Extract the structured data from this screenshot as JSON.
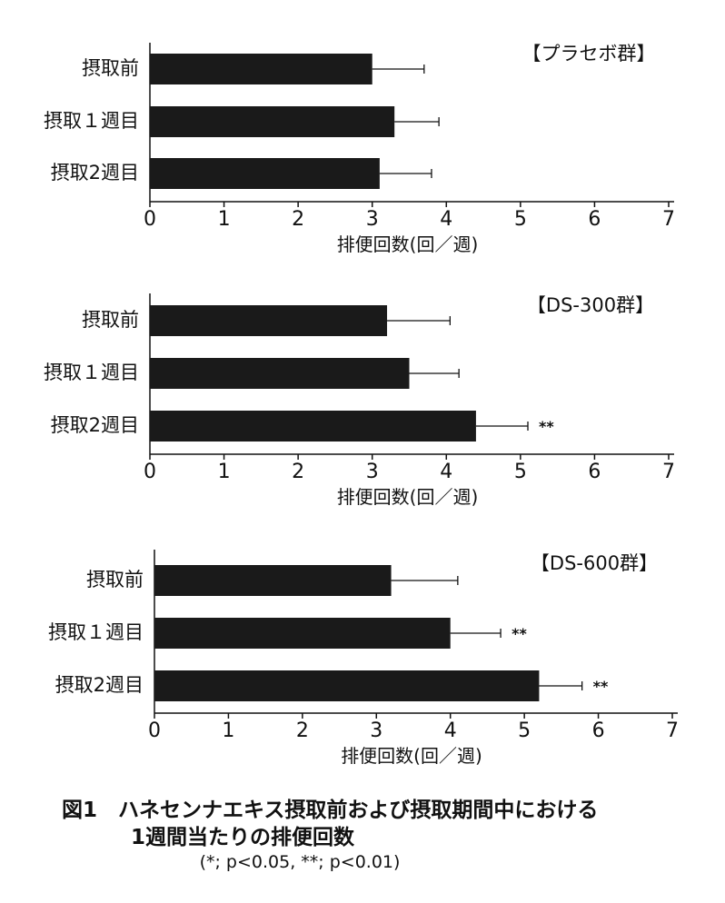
{
  "chart_data": [
    {
      "type": "bar",
      "orientation": "horizontal",
      "title": "【プラセボ群】",
      "categories": [
        "摂取前",
        "摂取１週目",
        "摂取2週目"
      ],
      "values": [
        3.0,
        3.3,
        3.1
      ],
      "error": [
        0.7,
        0.6,
        0.7
      ],
      "significance": [
        "",
        "",
        ""
      ],
      "xlabel": "排便回数(回／週)",
      "xlim": [
        0,
        7
      ],
      "xticks": [
        "0",
        "1",
        "2",
        "3",
        "4",
        "5",
        "6",
        "7"
      ],
      "grid": false
    },
    {
      "type": "bar",
      "orientation": "horizontal",
      "title": "【DS-300群】",
      "categories": [
        "摂取前",
        "摂取１週目",
        "摂取2週目"
      ],
      "values": [
        3.2,
        3.5,
        4.4
      ],
      "error": [
        0.85,
        0.67,
        0.7
      ],
      "significance": [
        "",
        "",
        "**"
      ],
      "xlabel": "排便回数(回／週)",
      "xlim": [
        0,
        7
      ],
      "xticks": [
        "0",
        "1",
        "2",
        "3",
        "4",
        "5",
        "6",
        "7"
      ],
      "grid": false
    },
    {
      "type": "bar",
      "orientation": "horizontal",
      "title": "【DS-600群】",
      "categories": [
        "摂取前",
        "摂取１週目",
        "摂取2週目"
      ],
      "values": [
        3.2,
        4.0,
        5.2
      ],
      "error": [
        0.9,
        0.68,
        0.58
      ],
      "significance": [
        "",
        "**",
        "**"
      ],
      "xlabel": "排便回数(回／週)",
      "xlim": [
        0,
        7
      ],
      "xticks": [
        "0",
        "1",
        "2",
        "3",
        "4",
        "5",
        "6",
        "7"
      ],
      "grid": false
    }
  ],
  "caption": {
    "line1": "図1　ハネセンナエキス摂取前および摂取期間中における",
    "line2": "1週間当たりの排便回数",
    "line3": "(*; p<0.05, **; p<0.01)"
  },
  "colors": {
    "bar": "#1a1a1a",
    "axis": "#111111",
    "background": "#ffffff"
  }
}
